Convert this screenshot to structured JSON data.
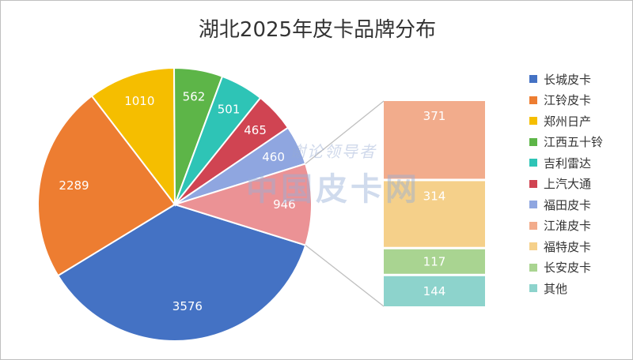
{
  "chart_data": {
    "type": "pie",
    "subtype": "bar-of-pie",
    "title": "湖北2025年皮卡品牌分布",
    "pie": {
      "categories": [
        "长城皮卡",
        "江铃皮卡",
        "郑州日产",
        "江西五十铃",
        "吉利雷达",
        "上汽大通",
        "福田皮卡",
        "其他"
      ],
      "values": [
        3576,
        2289,
        1010,
        562,
        501,
        465,
        460,
        946
      ],
      "colors": [
        "#4472C4",
        "#ED7D31",
        "#F5BE00",
        "#5DB548",
        "#2EC4B6",
        "#D04452",
        "#8FA6E0",
        "#EB9295"
      ]
    },
    "bar": {
      "categories": [
        "江淮皮卡",
        "福特皮卡",
        "长安皮卡",
        "其他"
      ],
      "values": [
        371,
        314,
        117,
        144
      ],
      "colors": [
        "#F2AC8C",
        "#F5D08A",
        "#A9D491",
        "#8DD3CC"
      ]
    },
    "legend": {
      "position": "right",
      "items": [
        {
          "label": "长城皮卡",
          "color": "#4472C4"
        },
        {
          "label": "江铃皮卡",
          "color": "#ED7D31"
        },
        {
          "label": "郑州日产",
          "color": "#F5BE00"
        },
        {
          "label": "江西五十铃",
          "color": "#5DB548"
        },
        {
          "label": "吉利雷达",
          "color": "#2EC4B6"
        },
        {
          "label": "上汽大通",
          "color": "#D04452"
        },
        {
          "label": "福田皮卡",
          "color": "#8FA6E0"
        },
        {
          "label": "江淮皮卡",
          "color": "#F2AC8C"
        },
        {
          "label": "福特皮卡",
          "color": "#F5D08A"
        },
        {
          "label": "长安皮卡",
          "color": "#A9D491"
        },
        {
          "label": "其他",
          "color": "#8DD3CC"
        }
      ]
    }
  },
  "watermark": {
    "top": "谢论领导者",
    "main": "中国皮卡网"
  }
}
